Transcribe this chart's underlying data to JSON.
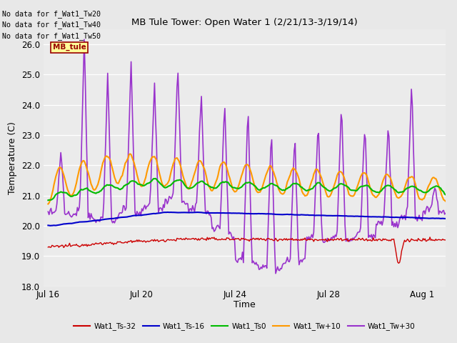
{
  "title": "MB Tule Tower: Open Water 1 (2/21/13-3/19/14)",
  "xlabel": "Time",
  "ylabel": "Temperature (C)",
  "ylim": [
    18.0,
    26.5
  ],
  "yticks": [
    18.0,
    19.0,
    20.0,
    21.0,
    22.0,
    23.0,
    24.0,
    25.0,
    26.0
  ],
  "bg_color": "#e8e8e8",
  "plot_bg_color": "#ebebeb",
  "no_data_lines": [
    "No data for f_Wat1_Tw20",
    "No data for f_Wat1_Tw40",
    "No data for f_Wat1_Tw50"
  ],
  "mb_tule_box": {
    "text": "MB_tule",
    "facecolor": "#ffff99",
    "edgecolor": "#990000",
    "textcolor": "#990000"
  },
  "series": {
    "Wat1_Ts-32": {
      "color": "#cc0000",
      "lw": 1.0
    },
    "Wat1_Ts-16": {
      "color": "#0000cc",
      "lw": 1.5
    },
    "Wat1_Ts0": {
      "color": "#00bb00",
      "lw": 1.5
    },
    "Wat1_Tw+10": {
      "color": "#ff9900",
      "lw": 1.5
    },
    "Wat1_Tw+30": {
      "color": "#9933cc",
      "lw": 1.2
    }
  },
  "xtick_labels": [
    "Jul 16",
    "Jul 20",
    "Jul 24",
    "Jul 28",
    "Aug 1"
  ],
  "n_days": 17
}
